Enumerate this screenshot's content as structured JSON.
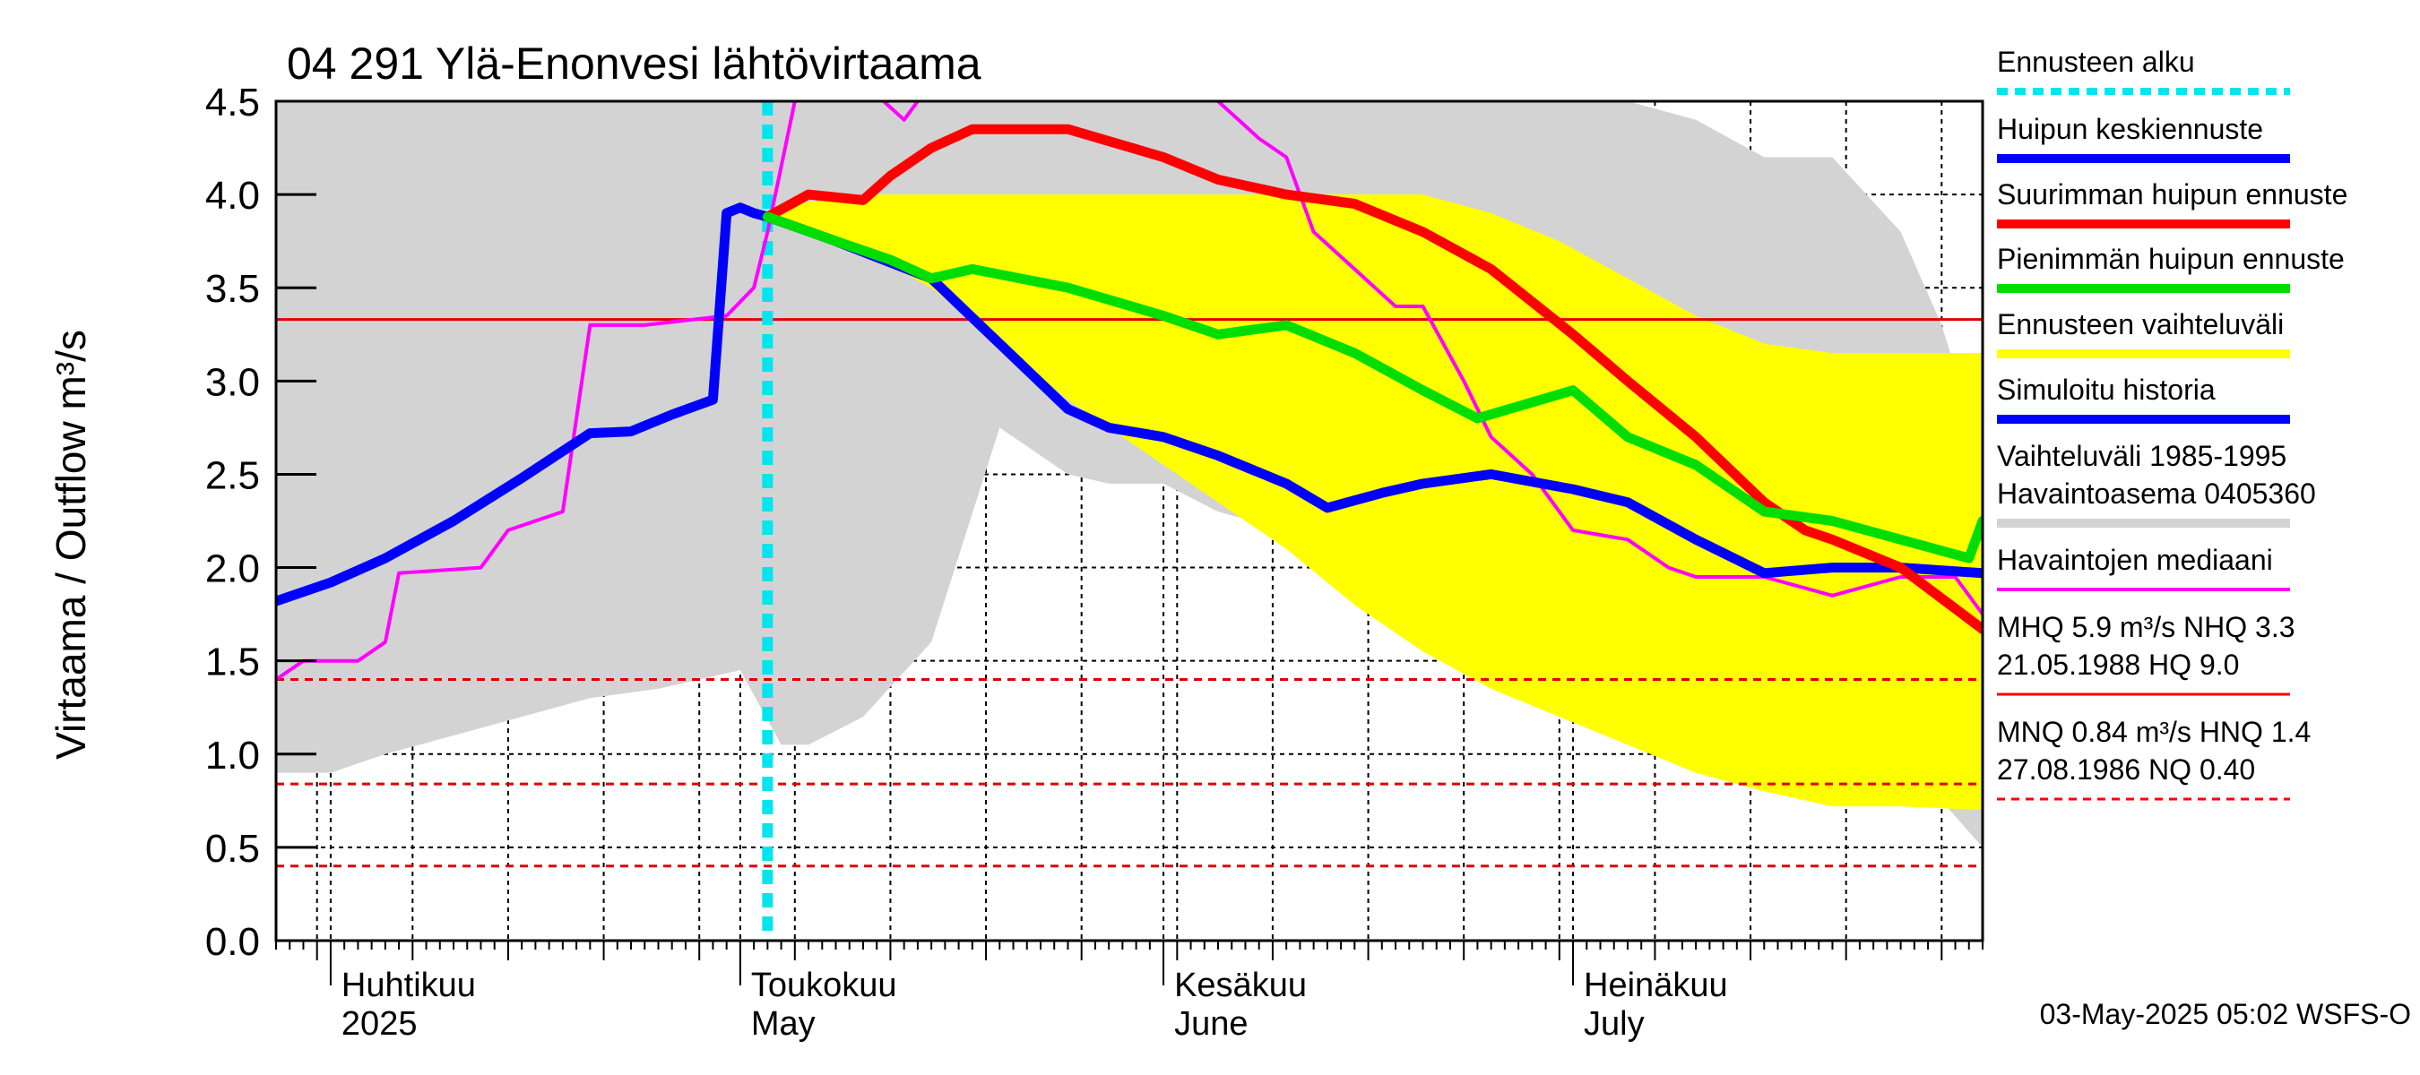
{
  "chart_data": {
    "type": "line",
    "title": "04 291 Ylä-Enonvesi lähtövirtaama",
    "ylabel": "Virtaama / Outflow    m³/s",
    "ylim": [
      0,
      4.5
    ],
    "yticks": [
      "0.0",
      "0.5",
      "1.0",
      "1.5",
      "2.0",
      "2.5",
      "3.0",
      "3.5",
      "4.0",
      "4.5"
    ],
    "x_range": [
      "2025-03-28",
      "2025-07-31"
    ],
    "month_labels": [
      {
        "date": "2025-04-01",
        "fi": "Huhtikuu",
        "en": "2025"
      },
      {
        "date": "2025-05-01",
        "fi": "Toukokuu",
        "en": "May"
      },
      {
        "date": "2025-06-01",
        "fi": "Kesäkuu",
        "en": "June"
      },
      {
        "date": "2025-07-01",
        "fi": "Heinäkuu",
        "en": "July"
      }
    ],
    "forecast_start": "2025-05-03",
    "reference_lines": [
      {
        "value": 3.33,
        "style": "solid",
        "color": "#e00000"
      },
      {
        "value": 1.4,
        "style": "dashed",
        "color": "#e00000"
      },
      {
        "value": 0.84,
        "style": "dashed",
        "color": "#e00000"
      },
      {
        "value": 0.4,
        "style": "dashed",
        "color": "#e00000"
      }
    ],
    "series": [
      {
        "name": "Vaihteluväli 1985-1995 Havaintoasema 0405360",
        "kind": "band",
        "color": "#d3d3d3",
        "x": [
          "2025-03-28",
          "2025-04-01",
          "2025-04-05",
          "2025-04-10",
          "2025-04-15",
          "2025-04-20",
          "2025-04-25",
          "2025-04-28",
          "2025-05-01",
          "2025-05-04",
          "2025-05-06",
          "2025-05-10",
          "2025-05-15",
          "2025-05-20",
          "2025-05-25",
          "2025-05-28",
          "2025-06-01",
          "2025-06-05",
          "2025-06-10",
          "2025-06-15",
          "2025-06-20",
          "2025-06-25",
          "2025-06-30",
          "2025-07-05",
          "2025-07-10",
          "2025-07-15",
          "2025-07-20",
          "2025-07-25",
          "2025-07-28",
          "2025-07-31"
        ],
        "low": [
          0.9,
          0.9,
          1.0,
          1.1,
          1.2,
          1.3,
          1.35,
          1.4,
          1.45,
          1.05,
          1.05,
          1.2,
          1.6,
          2.75,
          2.5,
          2.45,
          2.45,
          2.3,
          2.2,
          2.0,
          1.7,
          1.5,
          1.3,
          1.2,
          0.9,
          0.85,
          0.85,
          0.82,
          0.75,
          0.5
        ],
        "high": [
          4.5,
          4.5,
          4.5,
          4.5,
          4.5,
          4.5,
          4.5,
          4.5,
          4.5,
          4.5,
          4.5,
          4.5,
          4.5,
          4.5,
          4.5,
          4.5,
          4.5,
          4.5,
          4.5,
          4.5,
          4.5,
          4.5,
          4.5,
          4.5,
          4.4,
          4.2,
          4.2,
          3.8,
          3.3,
          2.6
        ]
      },
      {
        "name": "Ennusteen vaihteluväli",
        "kind": "band",
        "color": "#ffff00",
        "x": [
          "2025-05-03",
          "2025-05-05",
          "2025-05-10",
          "2025-05-15",
          "2025-05-20",
          "2025-05-25",
          "2025-06-01",
          "2025-06-05",
          "2025-06-10",
          "2025-06-15",
          "2025-06-20",
          "2025-06-25",
          "2025-06-30",
          "2025-07-05",
          "2025-07-10",
          "2025-07-15",
          "2025-07-20",
          "2025-07-25",
          "2025-07-31"
        ],
        "low": [
          3.9,
          3.8,
          3.7,
          3.5,
          3.2,
          2.9,
          2.55,
          2.35,
          2.1,
          1.8,
          1.55,
          1.35,
          1.2,
          1.05,
          0.9,
          0.8,
          0.72,
          0.72,
          0.7
        ],
        "high": [
          3.9,
          3.95,
          4.0,
          4.0,
          4.0,
          4.0,
          4.0,
          4.0,
          4.0,
          4.0,
          4.0,
          3.9,
          3.75,
          3.55,
          3.35,
          3.2,
          3.15,
          3.15,
          3.15
        ]
      },
      {
        "name": "Havaintojen mediaani",
        "kind": "line",
        "color": "#ff00ff",
        "x": [
          "2025-03-28",
          "2025-03-30",
          "2025-04-03",
          "2025-04-05",
          "2025-04-06",
          "2025-04-12",
          "2025-04-14",
          "2025-04-18",
          "2025-04-20",
          "2025-04-22",
          "2025-04-24",
          "2025-04-30",
          "2025-05-02",
          "2025-05-03",
          "2025-05-05",
          "2025-05-10",
          "2025-05-13",
          "2025-05-15",
          "2025-05-18",
          "2025-05-20",
          "2025-05-25",
          "2025-05-31",
          "2025-06-05",
          "2025-06-08",
          "2025-06-10",
          "2025-06-12",
          "2025-06-15",
          "2025-06-18",
          "2025-06-20",
          "2025-06-23",
          "2025-06-25",
          "2025-06-28",
          "2025-07-01",
          "2025-07-05",
          "2025-07-08",
          "2025-07-10",
          "2025-07-15",
          "2025-07-20",
          "2025-07-25",
          "2025-07-29",
          "2025-07-31"
        ],
        "y": [
          1.4,
          1.5,
          1.5,
          1.6,
          1.97,
          2.0,
          2.2,
          2.3,
          3.3,
          3.3,
          3.3,
          3.35,
          3.5,
          3.8,
          4.5,
          4.6,
          4.4,
          4.6,
          4.6,
          4.6,
          4.6,
          4.6,
          4.5,
          4.3,
          4.2,
          3.8,
          3.6,
          3.4,
          3.4,
          3.0,
          2.7,
          2.5,
          2.2,
          2.15,
          2.0,
          1.95,
          1.95,
          1.85,
          1.95,
          1.95,
          1.75
        ]
      },
      {
        "name": "Simuloitu historia",
        "kind": "line",
        "color": "#0000ff",
        "x": [
          "2025-03-28",
          "2025-04-01",
          "2025-04-05",
          "2025-04-10",
          "2025-04-15",
          "2025-04-20",
          "2025-04-23",
          "2025-04-26",
          "2025-04-29",
          "2025-04-30",
          "2025-05-01",
          "2025-05-02",
          "2025-05-03"
        ],
        "y": [
          1.82,
          1.92,
          2.05,
          2.25,
          2.48,
          2.72,
          2.73,
          2.82,
          2.9,
          3.9,
          3.93,
          3.9,
          3.88
        ]
      },
      {
        "name": "Huipun keskiennuste",
        "kind": "line",
        "color": "#0000ff",
        "x": [
          "2025-05-03",
          "2025-05-08",
          "2025-05-15",
          "2025-05-20",
          "2025-05-25",
          "2025-05-28",
          "2025-06-01",
          "2025-06-05",
          "2025-06-10",
          "2025-06-13",
          "2025-06-17",
          "2025-06-20",
          "2025-06-25",
          "2025-07-01",
          "2025-07-05",
          "2025-07-10",
          "2025-07-15",
          "2025-07-20",
          "2025-07-25",
          "2025-07-31"
        ],
        "y": [
          3.88,
          3.75,
          3.55,
          3.2,
          2.85,
          2.75,
          2.7,
          2.6,
          2.45,
          2.32,
          2.4,
          2.45,
          2.5,
          2.42,
          2.35,
          2.15,
          1.97,
          2.0,
          2.0,
          1.97
        ]
      },
      {
        "name": "Suurimman huipun ennuste",
        "kind": "line",
        "color": "#ff0000",
        "x": [
          "2025-05-03",
          "2025-05-06",
          "2025-05-10",
          "2025-05-12",
          "2025-05-15",
          "2025-05-18",
          "2025-05-20",
          "2025-05-25",
          "2025-06-01",
          "2025-06-05",
          "2025-06-10",
          "2025-06-15",
          "2025-06-20",
          "2025-06-25",
          "2025-07-01",
          "2025-07-05",
          "2025-07-10",
          "2025-07-15",
          "2025-07-18",
          "2025-07-20",
          "2025-07-25",
          "2025-07-31"
        ],
        "y": [
          3.88,
          4.0,
          3.97,
          4.1,
          4.25,
          4.35,
          4.35,
          4.35,
          4.2,
          4.08,
          4.0,
          3.95,
          3.8,
          3.6,
          3.25,
          3.0,
          2.7,
          2.35,
          2.2,
          2.15,
          2.0,
          1.67
        ]
      },
      {
        "name": "Pienimmän huipun ennuste",
        "kind": "line",
        "color": "#00dd00",
        "x": [
          "2025-05-03",
          "2025-05-08",
          "2025-05-12",
          "2025-05-15",
          "2025-05-18",
          "2025-05-25",
          "2025-06-01",
          "2025-06-05",
          "2025-06-10",
          "2025-06-15",
          "2025-06-20",
          "2025-06-24",
          "2025-07-01",
          "2025-07-05",
          "2025-07-10",
          "2025-07-15",
          "2025-07-20",
          "2025-07-25",
          "2025-07-30",
          "2025-07-31"
        ],
        "y": [
          3.88,
          3.75,
          3.65,
          3.55,
          3.6,
          3.5,
          3.35,
          3.25,
          3.3,
          3.15,
          2.95,
          2.8,
          2.95,
          2.7,
          2.55,
          2.3,
          2.25,
          2.15,
          2.05,
          2.25
        ]
      }
    ],
    "legend": {
      "placement": "right",
      "items": [
        {
          "label": "Ennusteen alku",
          "color": "#00e5ee",
          "style": "dotted-thick"
        },
        {
          "label": "Huipun keskiennuste",
          "color": "#0000ff",
          "style": "thick"
        },
        {
          "label": "Suurimman huipun ennuste",
          "color": "#ff0000",
          "style": "thick"
        },
        {
          "label": "Pienimmän huipun ennuste",
          "color": "#00dd00",
          "style": "thick"
        },
        {
          "label": "Ennusteen vaihteluväli",
          "color": "#ffff00",
          "style": "thick"
        },
        {
          "label": "Simuloitu historia",
          "color": "#0000ff",
          "style": "thick"
        },
        {
          "label": "Vaihteluväli 1985-1995\n Havaintoasema 0405360",
          "color": "#d3d3d3",
          "style": "thick"
        },
        {
          "label": "Havaintojen mediaani",
          "color": "#ff00ff",
          "style": "thin"
        },
        {
          "label": "MHQ  5.9 m³/s NHQ  3.3\n21.05.1988 HQ  9.0",
          "color": "#ff0000",
          "style": "solid-thin"
        },
        {
          "label": "MNQ 0.84 m³/s HNQ  1.4\n27.08.1986 NQ 0.40",
          "color": "#ff0000",
          "style": "dashed-thin"
        }
      ]
    },
    "footer": "03-May-2025 05:02 WSFS-O"
  }
}
